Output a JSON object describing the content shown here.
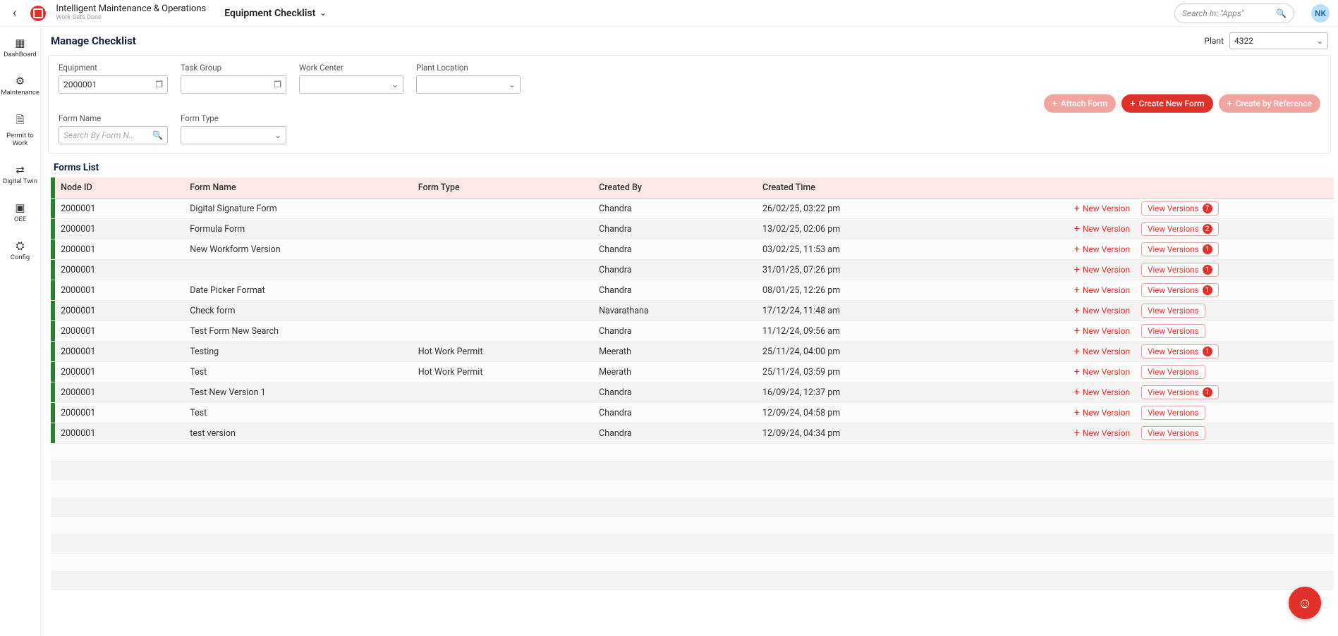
{
  "app": {
    "title": "Intelligent Maintenance & Operations",
    "subtitle": "Work Gets Done"
  },
  "breadcrumb": "Equipment Checklist",
  "search": {
    "placeholder": "Search In: \"Apps\""
  },
  "user": {
    "initials": "NK"
  },
  "nav": [
    {
      "icon": "▦",
      "label": "DashBoard"
    },
    {
      "icon": "⚙",
      "label": "Maintenance"
    },
    {
      "icon": "🗎",
      "label": "Permit to Work"
    },
    {
      "icon": "⇄",
      "label": "Digital Twin"
    },
    {
      "icon": "▣",
      "label": "OEE"
    },
    {
      "icon": "⛭",
      "label": "Config"
    }
  ],
  "page": {
    "title": "Manage Checklist",
    "plantLabel": "Plant",
    "plantValue": "4322"
  },
  "filters": {
    "equipment": {
      "label": "Equipment",
      "value": "2000001"
    },
    "taskGroup": {
      "label": "Task Group"
    },
    "workCenter": {
      "label": "Work Center"
    },
    "plantLocation": {
      "label": "Plant Location"
    },
    "formName": {
      "label": "Form Name",
      "placeholder": "Search By Form N…"
    },
    "formType": {
      "label": "Form Type"
    }
  },
  "actions": {
    "attach": "Attach Form",
    "create": "Create New Form",
    "ref": "Create by Reference"
  },
  "listTitle": "Forms List",
  "columns": {
    "node": "Node ID",
    "formName": "Form Name",
    "formType": "Form Type",
    "createdBy": "Created By",
    "createdTime": "Created Time"
  },
  "rowActions": {
    "newVersion": "New Version",
    "viewVersions": "View Versions"
  },
  "rows": [
    {
      "node": "2000001",
      "formName": "Digital Signature Form",
      "formType": "",
      "createdBy": "Chandra",
      "createdTime": "26/02/25, 03:22 pm",
      "badge": 7
    },
    {
      "node": "2000001",
      "formName": "Formula Form",
      "formType": "",
      "createdBy": "Chandra",
      "createdTime": "13/02/25, 02:06 pm",
      "badge": 2
    },
    {
      "node": "2000001",
      "formName": "New Workform Version",
      "formType": "",
      "createdBy": "Chandra",
      "createdTime": "03/02/25, 11:53 am",
      "badge": 1
    },
    {
      "node": "2000001",
      "formName": "",
      "formType": "",
      "createdBy": "Chandra",
      "createdTime": "31/01/25, 07:26 pm",
      "badge": 1
    },
    {
      "node": "2000001",
      "formName": "Date Picker Format",
      "formType": "",
      "createdBy": "Chandra",
      "createdTime": "08/01/25, 12:26 pm",
      "badge": 1
    },
    {
      "node": "2000001",
      "formName": "Check form",
      "formType": "",
      "createdBy": "Navarathana",
      "createdTime": "17/12/24, 11:48 am",
      "badge": null
    },
    {
      "node": "2000001",
      "formName": "Test Form New Search",
      "formType": "",
      "createdBy": "Chandra",
      "createdTime": "11/12/24, 09:56 am",
      "badge": null
    },
    {
      "node": "2000001",
      "formName": "Testing",
      "formType": "Hot Work Permit",
      "createdBy": "Meerath",
      "createdTime": "25/11/24, 04:00 pm",
      "badge": 1
    },
    {
      "node": "2000001",
      "formName": "Test",
      "formType": "Hot Work Permit",
      "createdBy": "Meerath",
      "createdTime": "25/11/24, 03:59 pm",
      "badge": null
    },
    {
      "node": "2000001",
      "formName": "Test New Version 1",
      "formType": "",
      "createdBy": "Chandra",
      "createdTime": "16/09/24, 12:37 pm",
      "badge": 1
    },
    {
      "node": "2000001",
      "formName": "Test",
      "formType": "",
      "createdBy": "Chandra",
      "createdTime": "12/09/24, 04:58 pm",
      "badge": null
    },
    {
      "node": "2000001",
      "formName": "test version",
      "formType": "",
      "createdBy": "Chandra",
      "createdTime": "12/09/24, 04:34 pm",
      "badge": null
    }
  ],
  "emptyRows": 8
}
